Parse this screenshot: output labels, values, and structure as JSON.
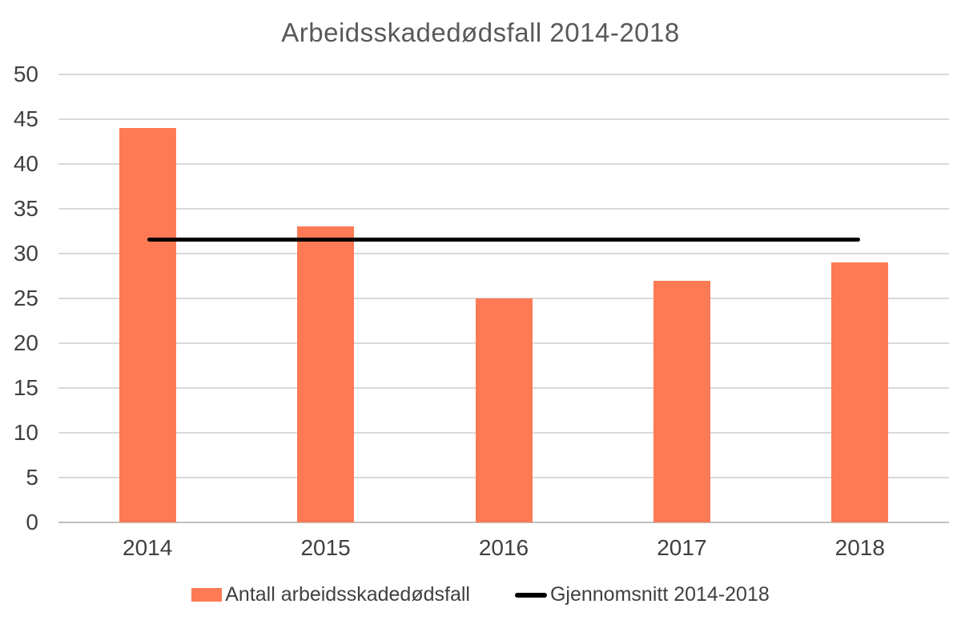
{
  "chart_data": {
    "type": "bar",
    "title": "Arbeidsskadedødsfall 2014-2018",
    "categories": [
      "2014",
      "2015",
      "2016",
      "2017",
      "2018"
    ],
    "series": [
      {
        "name": "Antall arbeidsskadedødsfall",
        "type": "bar",
        "values": [
          44,
          33,
          25,
          27,
          29
        ],
        "color": "#FD7A55"
      },
      {
        "name": "Gjennomsnitt 2014-2018",
        "type": "line",
        "values": [
          31.6,
          31.6,
          31.6,
          31.6,
          31.6
        ],
        "color": "#000000"
      }
    ],
    "xlabel": "",
    "ylabel": "",
    "ylim": [
      0,
      50
    ],
    "ytick_step": 5,
    "grid": true,
    "legend_position": "bottom",
    "colors": {
      "gridline": "#D9D9D9",
      "axisline": "#BFBFBF",
      "tick_text": "#404040",
      "title_text": "#595959"
    }
  }
}
